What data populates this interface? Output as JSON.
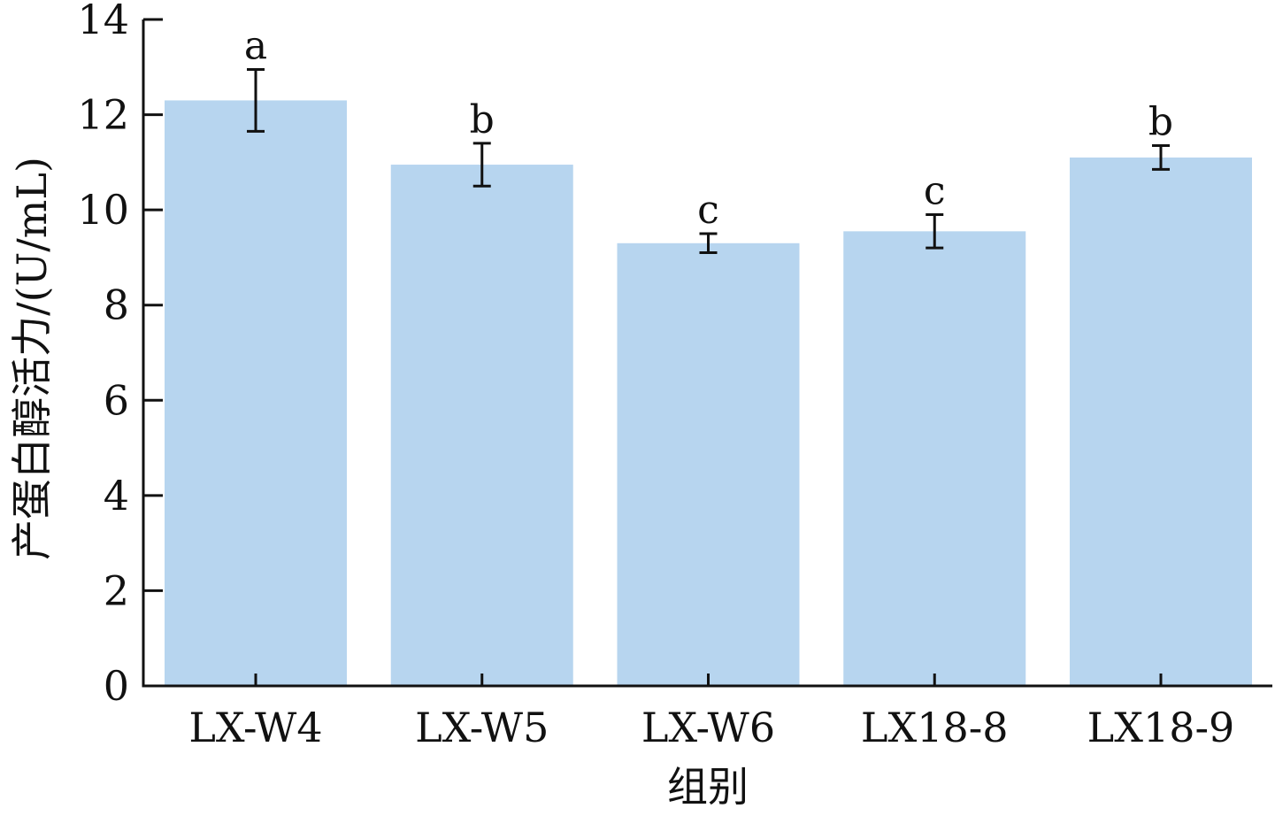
{
  "chart_data": {
    "type": "bar",
    "categories": [
      "LX-W4",
      "LX-W5",
      "LX-W6",
      "LX18-8",
      "LX18-9"
    ],
    "values": [
      12.3,
      10.95,
      9.3,
      9.55,
      11.1
    ],
    "errors": [
      0.65,
      0.45,
      0.2,
      0.35,
      0.25
    ],
    "significance_labels": [
      "a",
      "b",
      "c",
      "c",
      "b"
    ],
    "title": "",
    "xlabel": "组别",
    "ylabel": "产蛋白醇活力/(U/mL)",
    "ylim": [
      0,
      14
    ],
    "yticks": [
      0,
      2,
      4,
      6,
      8,
      10,
      12,
      14
    ],
    "grid": false,
    "legend": "none",
    "colors": {
      "bar": "#b7d5ef",
      "axis": "#111111",
      "error_bar": "#111111"
    }
  }
}
